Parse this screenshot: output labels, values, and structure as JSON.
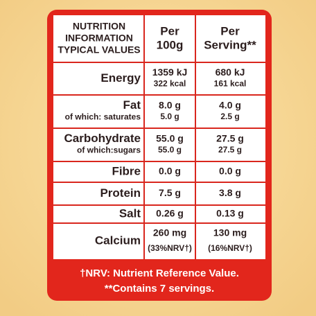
{
  "table": {
    "header": [
      [
        "NUTRITION",
        "INFORMATION",
        "TYPICAL VALUES"
      ],
      [
        "Per",
        "100g"
      ],
      [
        "Per",
        "Serving**"
      ]
    ],
    "rows": [
      [
        [
          "Energy"
        ],
        [
          "1359 kJ",
          "322 kcal"
        ],
        [
          "680 kJ",
          "161 kcal"
        ]
      ],
      [
        [
          "Fat",
          "of which: saturates"
        ],
        [
          "8.0 g",
          "5.0 g"
        ],
        [
          "4.0 g",
          "2.5 g"
        ]
      ],
      [
        [
          "Carbohydrate",
          "of which:sugars"
        ],
        [
          "55.0 g",
          "55.0 g"
        ],
        [
          "27.5 g",
          "27.5 g"
        ]
      ],
      [
        [
          "Fibre"
        ],
        [
          "0.0 g"
        ],
        [
          "0.0 g"
        ]
      ],
      [
        [
          "Protein"
        ],
        [
          "7.5 g"
        ],
        [
          "3.8 g"
        ]
      ],
      [
        [
          "Salt"
        ],
        [
          "0.26 g"
        ],
        [
          "0.13 g"
        ]
      ],
      [
        [
          "Calcium"
        ],
        [
          "260 mg",
          "(33%NRV†)"
        ],
        [
          "130 mg",
          "(16%NRV†)"
        ]
      ]
    ]
  },
  "footer": [
    "†NRV: Nutrient Reference Value.",
    "**Contains 7 servings."
  ]
}
